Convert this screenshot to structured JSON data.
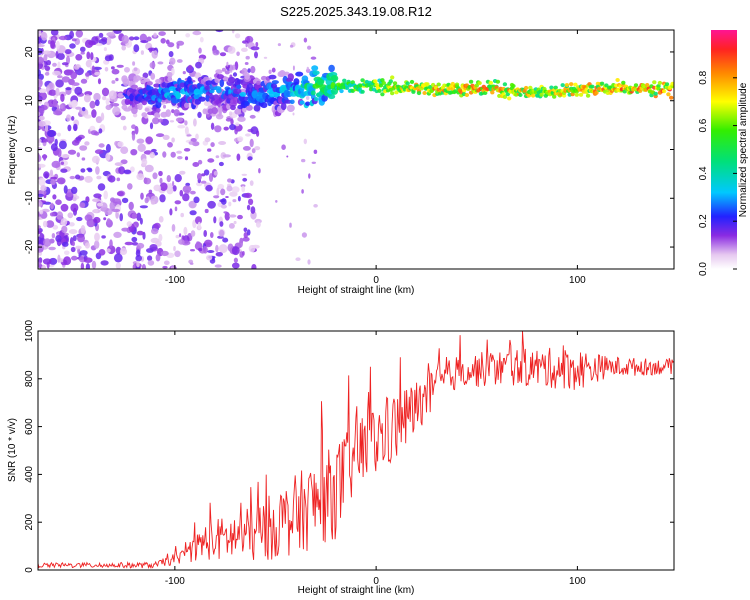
{
  "title": "S225.2025.343.19.08.R12",
  "chart_data": [
    {
      "type": "heatmap",
      "xlabel": "Height of straight line (km)",
      "ylabel": "Frequency (Hz)",
      "xlim": [
        -168,
        148
      ],
      "ylim": [
        -24.5,
        24.5
      ],
      "xticks": [
        -100,
        0,
        100
      ],
      "yticks": [
        -20,
        -10,
        0,
        10,
        20
      ],
      "colorbar": {
        "label": "Normalized spectral amplitude",
        "range": [
          0.0,
          1.0
        ],
        "ticks": [
          "0.0",
          "0.2",
          "0.4",
          "0.6",
          "0.8"
        ],
        "tick_values": [
          0.0,
          0.2,
          0.4,
          0.6,
          0.8
        ]
      },
      "ridge": [
        {
          "x": -120,
          "y": 11,
          "amp": 0.25
        },
        {
          "x": -100,
          "y": 11.5,
          "amp": 0.35
        },
        {
          "x": -80,
          "y": 12,
          "amp": 0.3
        },
        {
          "x": -60,
          "y": 11,
          "amp": 0.3
        },
        {
          "x": -40,
          "y": 12,
          "amp": 0.4
        },
        {
          "x": -30,
          "y": 13,
          "amp": 0.55
        },
        {
          "x": -10,
          "y": 13,
          "amp": 0.6
        },
        {
          "x": 0,
          "y": 13,
          "amp": 0.7
        },
        {
          "x": 20,
          "y": 12.5,
          "amp": 0.8
        },
        {
          "x": 40,
          "y": 12.5,
          "amp": 0.85
        },
        {
          "x": 60,
          "y": 12.5,
          "amp": 0.8
        },
        {
          "x": 80,
          "y": 11.5,
          "amp": 0.75
        },
        {
          "x": 100,
          "y": 12.5,
          "amp": 0.8
        },
        {
          "x": 120,
          "y": 12.5,
          "amp": 0.85
        },
        {
          "x": 148,
          "y": 12.5,
          "amp": 0.85
        }
      ]
    },
    {
      "type": "line",
      "xlabel": "Height of straight line (km)",
      "ylabel": "SNR (10 * v/v)",
      "xlim": [
        -168,
        148
      ],
      "ylim": [
        0,
        1000
      ],
      "xticks": [
        -100,
        0,
        100
      ],
      "yticks": [
        0,
        200,
        400,
        600,
        800,
        1000
      ],
      "series": [
        {
          "name": "SNR",
          "color": "#ee2222",
          "envelope": [
            {
              "x": -168,
              "mean": 20,
              "noise": 10
            },
            {
              "x": -110,
              "mean": 20,
              "noise": 12
            },
            {
              "x": -95,
              "mean": 60,
              "noise": 30
            },
            {
              "x": -85,
              "mean": 120,
              "noise": 80
            },
            {
              "x": -60,
              "mean": 150,
              "noise": 120
            },
            {
              "x": -40,
              "mean": 230,
              "noise": 170
            },
            {
              "x": -20,
              "mean": 330,
              "noise": 200
            },
            {
              "x": -10,
              "mean": 480,
              "noise": 160
            },
            {
              "x": 10,
              "mean": 600,
              "noise": 150
            },
            {
              "x": 25,
              "mean": 720,
              "noise": 100
            },
            {
              "x": 40,
              "mean": 830,
              "noise": 70
            },
            {
              "x": 70,
              "mean": 850,
              "noise": 80
            },
            {
              "x": 100,
              "mean": 840,
              "noise": 90
            },
            {
              "x": 115,
              "mean": 850,
              "noise": 45
            },
            {
              "x": 148,
              "mean": 850,
              "noise": 30
            }
          ]
        }
      ]
    }
  ]
}
